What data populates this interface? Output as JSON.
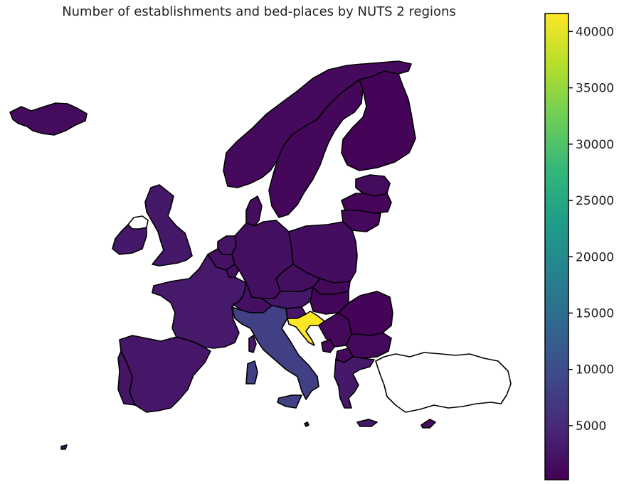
{
  "title": "Number of establishments and bed-places by NUTS 2 regions",
  "colormap": {
    "name": "viridis",
    "min": 200,
    "max": 41600,
    "stops": [
      "#440154",
      "#482878",
      "#3e4989",
      "#31688e",
      "#26828e",
      "#1f9e89",
      "#35b779",
      "#6ece58",
      "#b5de2b",
      "#fde725"
    ],
    "ticks": [
      "5000",
      "10000",
      "15000",
      "20000",
      "25000",
      "30000",
      "35000",
      "40000"
    ],
    "tick_values": [
      5000,
      10000,
      15000,
      20000,
      25000,
      30000,
      35000,
      40000
    ]
  },
  "map_data": {
    "regions": [
      {
        "id": "iceland",
        "value": 1500
      },
      {
        "id": "norway",
        "value": 1300
      },
      {
        "id": "sweden",
        "value": 900
      },
      {
        "id": "finland",
        "value": 600
      },
      {
        "id": "estonia",
        "value": 1400
      },
      {
        "id": "latvia",
        "value": 800
      },
      {
        "id": "lithuania",
        "value": 1100
      },
      {
        "id": "denmark",
        "value": 1500
      },
      {
        "id": "ireland",
        "value": 2900
      },
      {
        "id": "united-kingdom",
        "value": 2900
      },
      {
        "id": "netherlands",
        "value": 2400
      },
      {
        "id": "belgium",
        "value": 2100
      },
      {
        "id": "luxembourg",
        "value": 1800
      },
      {
        "id": "france",
        "value": 3000
      },
      {
        "id": "germany",
        "value": 1900
      },
      {
        "id": "poland",
        "value": 1600
      },
      {
        "id": "czechia",
        "value": 1800
      },
      {
        "id": "slovakia",
        "value": 1200
      },
      {
        "id": "austria",
        "value": 2800
      },
      {
        "id": "hungary",
        "value": 900
      },
      {
        "id": "switzerland",
        "value": 2000
      },
      {
        "id": "italy",
        "value": 8200
      },
      {
        "id": "sicily",
        "value": 8200
      },
      {
        "id": "sardinia",
        "value": 8200
      },
      {
        "id": "slovenia",
        "value": 2600
      },
      {
        "id": "croatia",
        "value": 41600
      },
      {
        "id": "montenegro",
        "value": 1400
      },
      {
        "id": "romania",
        "value": 700
      },
      {
        "id": "bulgaria",
        "value": 1200
      },
      {
        "id": "north-macedonia",
        "value": 1300
      },
      {
        "id": "serbia",
        "value": 1100
      },
      {
        "id": "greece",
        "value": 2900
      },
      {
        "id": "crete",
        "value": 2900
      },
      {
        "id": "spain",
        "value": 2700
      },
      {
        "id": "portugal",
        "value": 2500
      },
      {
        "id": "malta",
        "value": 2000
      },
      {
        "id": "cyprus",
        "value": 1400
      },
      {
        "id": "corsica",
        "value": 3000
      },
      {
        "id": "canary-islands",
        "value": 2000
      },
      {
        "id": "northern-ireland",
        "value": null
      },
      {
        "id": "turkey",
        "value": null
      }
    ]
  }
}
